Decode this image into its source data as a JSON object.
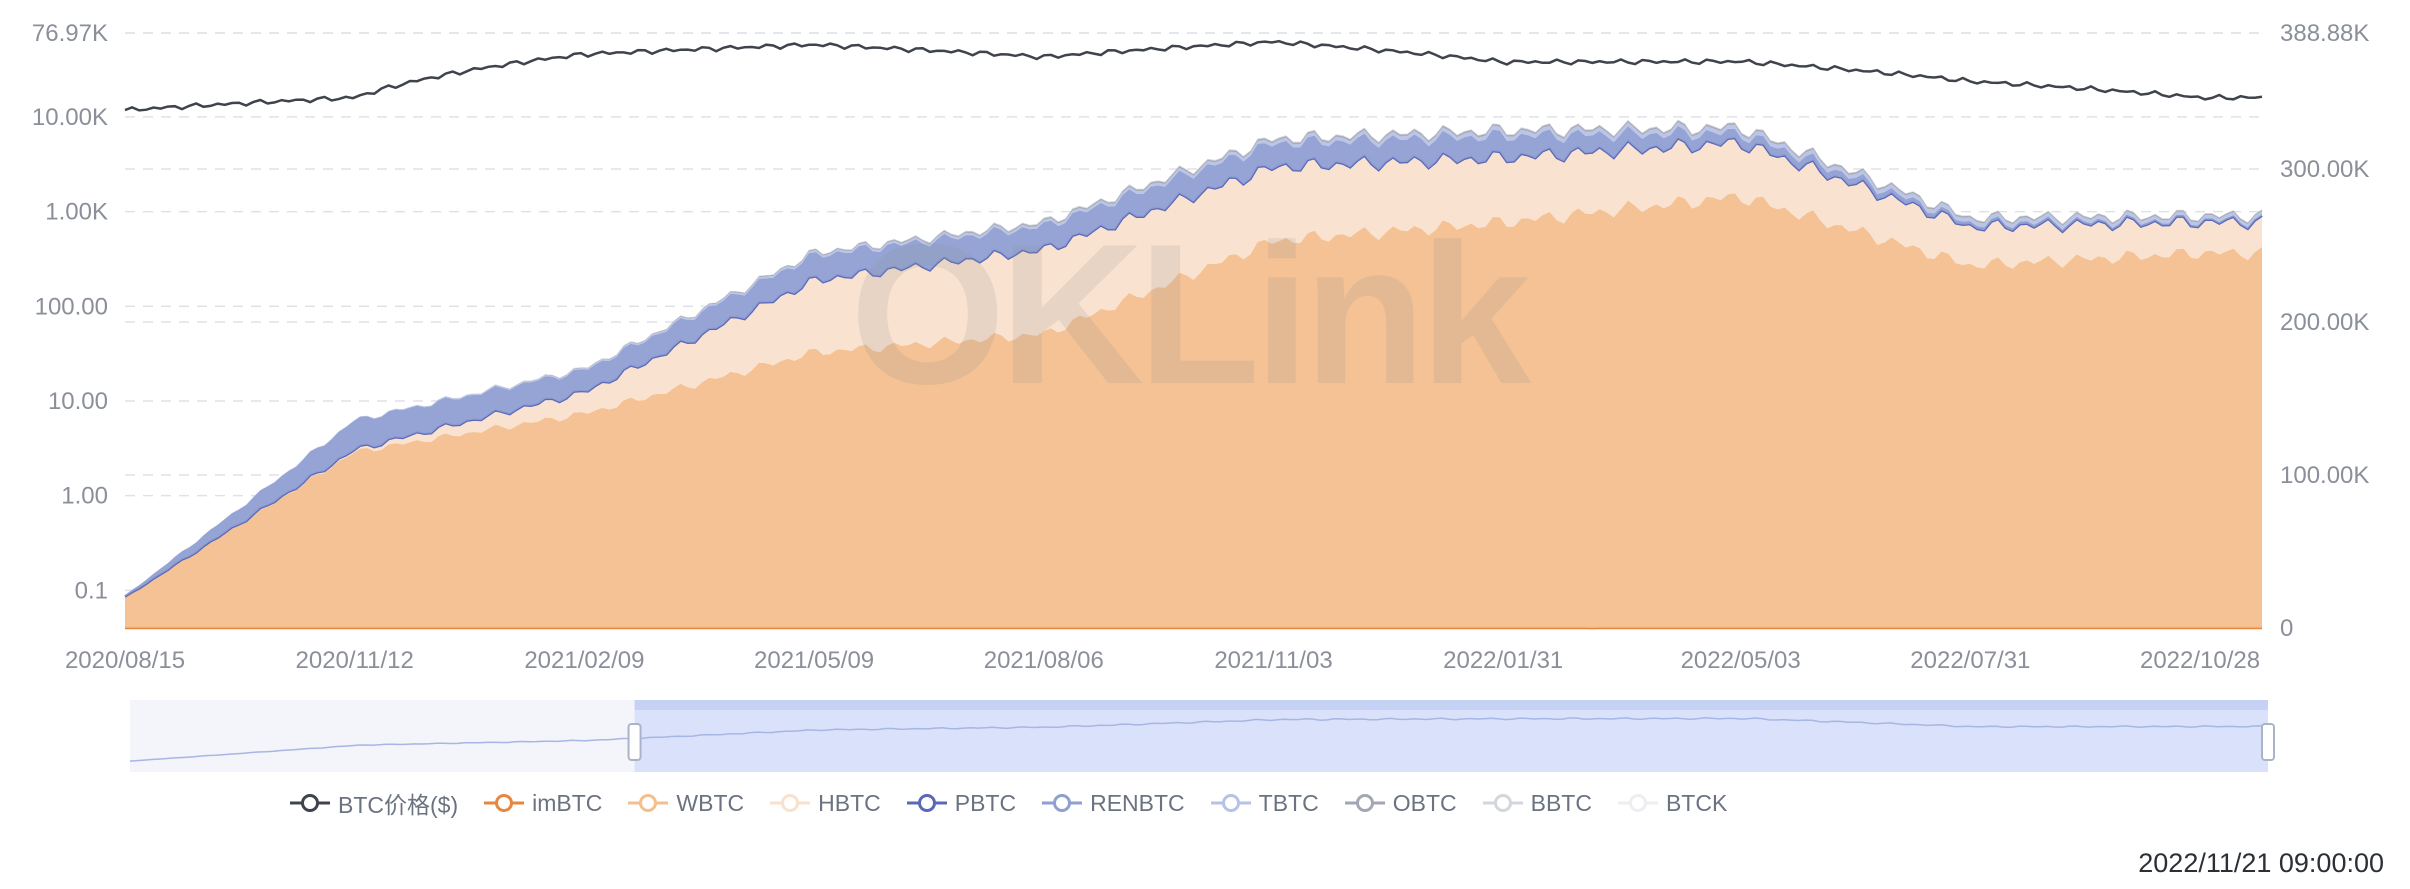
{
  "watermark": "OKLink",
  "timestamp": "2022/11/21 09:00:00",
  "colors": {
    "price": "#3f434b",
    "imBTC": "#e8863d",
    "WBTC": "#f3bf8e",
    "HBTC": "#f9e2cd",
    "PBTC": "#5b68b8",
    "PBTC_fill": "#8b97d8",
    "RENBTC": "#8f9fd2",
    "TBTC": "#b6c2e6",
    "OBTC": "#a3a7b4",
    "BBTC": "#d4d6dd",
    "BTCK": "#edeef2",
    "grid": "#dfe2e8",
    "axis_text": "#8a8f99"
  },
  "legend": [
    {
      "label": "BTC价格($)",
      "key": "price"
    },
    {
      "label": "imBTC",
      "key": "imBTC"
    },
    {
      "label": "WBTC",
      "key": "WBTC"
    },
    {
      "label": "HBTC",
      "key": "HBTC"
    },
    {
      "label": "PBTC",
      "key": "PBTC"
    },
    {
      "label": "RENBTC",
      "key": "RENBTC"
    },
    {
      "label": "TBTC",
      "key": "TBTC"
    },
    {
      "label": "OBTC",
      "key": "OBTC"
    },
    {
      "label": "BBTC",
      "key": "BBTC"
    },
    {
      "label": "BTCK",
      "key": "BTCK"
    }
  ],
  "chart_data": {
    "type": "area",
    "stacked": true,
    "x": [
      "2020/08/15",
      "2020/11/12",
      "2021/02/09",
      "2021/05/09",
      "2021/08/06",
      "2021/11/03",
      "2022/01/31",
      "2022/05/03",
      "2022/07/31",
      "2022/10/28"
    ],
    "x_tick_labels": [
      "2020/08/15",
      "2020/11/12",
      "2021/02/09",
      "2021/05/09",
      "2021/08/06",
      "2021/11/03",
      "2022/01/31",
      "2022/05/03",
      "2022/07/31",
      "2022/10/28"
    ],
    "left_axis": {
      "scale": "log",
      "tick_labels": [
        "0.1",
        "1.00",
        "10.00",
        "100.00",
        "1.00K",
        "10.00K",
        "76.97K"
      ],
      "series": "BTC价格($)"
    },
    "right_axis": {
      "scale": "linear",
      "tick_labels": [
        "0",
        "100.00K",
        "200.00K",
        "300.00K",
        "388.88K"
      ],
      "range": [
        0,
        388880
      ]
    },
    "series": [
      {
        "name": "BTC价格($)",
        "axis": "left",
        "type": "line",
        "values": [
          11800,
          16000,
          46000,
          58000,
          43000,
          62000,
          38000,
          38500,
          23800,
          16000
        ]
      },
      {
        "name": "imBTC",
        "axis": "right",
        "values": [
          200,
          200,
          150,
          150,
          150,
          150,
          100,
          100,
          100,
          100
        ]
      },
      {
        "name": "WBTC",
        "axis": "right",
        "values": [
          20000,
          115000,
          140000,
          180000,
          192000,
          253000,
          265000,
          282000,
          237000,
          245000
        ]
      },
      {
        "name": "HBTC",
        "axis": "right",
        "values": [
          0,
          1500,
          14000,
          47000,
          55000,
          48000,
          42000,
          35000,
          25000,
          20000
        ]
      },
      {
        "name": "PBTC",
        "axis": "right",
        "values": [
          0,
          100,
          200,
          300,
          400,
          500,
          500,
          500,
          500,
          500
        ]
      },
      {
        "name": "RENBTC",
        "axis": "right",
        "values": [
          1000,
          19000,
          14000,
          16000,
          15000,
          15000,
          14000,
          6000,
          2000,
          1000
        ]
      },
      {
        "name": "TBTC",
        "axis": "right",
        "values": [
          0,
          300,
          800,
          1200,
          1500,
          2000,
          2500,
          2500,
          2400,
          2000
        ]
      },
      {
        "name": "OBTC",
        "axis": "right",
        "values": [
          0,
          0,
          400,
          800,
          1000,
          1200,
          1200,
          1200,
          1100,
          1000
        ]
      },
      {
        "name": "BBTC",
        "axis": "right",
        "values": [
          0,
          0,
          200,
          300,
          500,
          500,
          500,
          500,
          400,
          300
        ]
      },
      {
        "name": "BTCK",
        "axis": "right",
        "values": [
          0,
          0,
          0,
          0,
          0,
          0,
          0,
          0,
          0,
          0
        ]
      }
    ],
    "legend_position": "bottom",
    "grid": true,
    "data_zoom": {
      "start": 0.236,
      "end": 1.0
    }
  }
}
